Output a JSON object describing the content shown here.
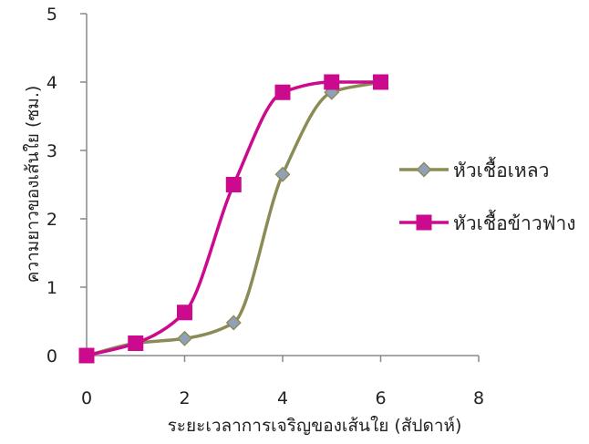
{
  "chart_data": {
    "type": "line",
    "title": "",
    "xlabel": "ระยะเวลาการเจริญของเส้นใย (สัปดาห์)",
    "ylabel": "ความยาวของเส้นใย (ซม.)",
    "xlim": [
      0,
      8
    ],
    "ylim": [
      0,
      5
    ],
    "xticks": [
      "0",
      "2",
      "4",
      "6",
      "8"
    ],
    "yticks": [
      "0",
      "1",
      "2",
      "3",
      "4",
      "5"
    ],
    "grid": false,
    "legend_position": "right",
    "series": [
      {
        "name": "หัวเชื้อเหลว",
        "color": "#8b8b55",
        "marker": "diamond",
        "marker_fill": "#8fa0b8",
        "smooth": true,
        "x": [
          0,
          1,
          2,
          3,
          4,
          5,
          6
        ],
        "y": [
          0.0,
          0.18,
          0.25,
          0.48,
          2.65,
          3.85,
          4.0
        ]
      },
      {
        "name": "หัวเชื้อข้าวฟ่าง",
        "color": "#cc0a8e",
        "marker": "square",
        "marker_fill": "#cc0a8e",
        "smooth": true,
        "x": [
          0,
          1,
          2,
          3,
          4,
          5,
          6
        ],
        "y": [
          0.0,
          0.18,
          0.63,
          2.5,
          3.85,
          4.0,
          4.0
        ]
      }
    ]
  }
}
